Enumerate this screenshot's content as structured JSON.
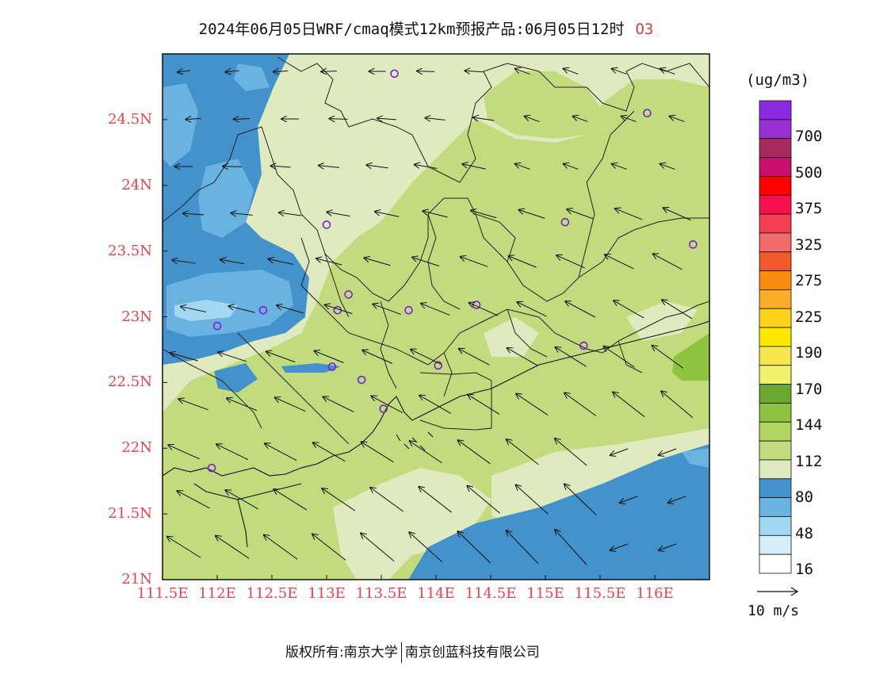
{
  "title": {
    "main": "2024年06月05日WRF/cmaq模式12km预报产品:06月05日12时",
    "variable": "O3"
  },
  "map": {
    "lat_range": [
      21.0,
      25.0
    ],
    "lon_range": [
      111.5,
      116.5
    ],
    "lat_ticks": [
      {
        "value": 21.0,
        "label": "21N"
      },
      {
        "value": 21.5,
        "label": "21.5N"
      },
      {
        "value": 22.0,
        "label": "22N"
      },
      {
        "value": 22.5,
        "label": "22.5N"
      },
      {
        "value": 23.0,
        "label": "23N"
      },
      {
        "value": 23.5,
        "label": "23.5N"
      },
      {
        "value": 24.0,
        "label": "24N"
      },
      {
        "value": 24.5,
        "label": "24.5N"
      }
    ],
    "lon_ticks": [
      {
        "value": 111.5,
        "label": "111.5E"
      },
      {
        "value": 112.0,
        "label": "112E"
      },
      {
        "value": 112.5,
        "label": "112.5E"
      },
      {
        "value": 113.0,
        "label": "113E"
      },
      {
        "value": 113.5,
        "label": "113.5E"
      },
      {
        "value": 114.0,
        "label": "114E"
      },
      {
        "value": 114.5,
        "label": "114.5E"
      },
      {
        "value": 115.0,
        "label": "115E"
      },
      {
        "value": 115.5,
        "label": "115.5E"
      },
      {
        "value": 116.0,
        "label": "116E"
      }
    ],
    "stations": [
      {
        "lon": 113.62,
        "lat": 24.85
      },
      {
        "lon": 115.93,
        "lat": 24.55
      },
      {
        "lon": 115.18,
        "lat": 23.72
      },
      {
        "lon": 116.35,
        "lat": 23.55
      },
      {
        "lon": 113.0,
        "lat": 23.7
      },
      {
        "lon": 112.42,
        "lat": 23.05
      },
      {
        "lon": 112.0,
        "lat": 22.93
      },
      {
        "lon": 113.2,
        "lat": 23.17
      },
      {
        "lon": 113.1,
        "lat": 23.05
      },
      {
        "lon": 113.75,
        "lat": 23.05
      },
      {
        "lon": 114.37,
        "lat": 23.09
      },
      {
        "lon": 113.05,
        "lat": 22.62
      },
      {
        "lon": 113.32,
        "lat": 22.52
      },
      {
        "lon": 114.02,
        "lat": 22.63
      },
      {
        "lon": 115.35,
        "lat": 22.78
      },
      {
        "lon": 113.52,
        "lat": 22.3
      },
      {
        "lon": 111.95,
        "lat": 21.85
      }
    ]
  },
  "colorbar": {
    "unit": "(ug/m3)",
    "colors": [
      "#ffffff",
      "#d6eefa",
      "#a3d8f3",
      "#6ab2e0",
      "#4392cb",
      "#dfeabf",
      "#c2db7d",
      "#b3d562",
      "#8dc33e",
      "#6aa732",
      "#f0f26d",
      "#f8e64f",
      "#fde804",
      "#fcd21b",
      "#fbad29",
      "#f98b0f",
      "#ef5a26",
      "#f36a6b",
      "#f43f52",
      "#f90f4f",
      "#ff0000",
      "#c70f6c",
      "#a72a5e",
      "#9b30d2",
      "#8a2ae0"
    ],
    "labels": [
      {
        "text": "700",
        "index": 2
      },
      {
        "text": "500",
        "index": 4
      },
      {
        "text": "375",
        "index": 6
      },
      {
        "text": "325",
        "index": 8
      },
      {
        "text": "275",
        "index": 10
      },
      {
        "text": "225",
        "index": 12
      },
      {
        "text": "190",
        "index": 14
      },
      {
        "text": "170",
        "index": 16
      },
      {
        "text": "144",
        "index": 18
      },
      {
        "text": "112",
        "index": 20
      },
      {
        "text": "80",
        "index": 22
      },
      {
        "text": "48",
        "index": 24
      },
      {
        "text": "16",
        "index": 26
      }
    ]
  },
  "reference_vector": {
    "label": "10 m/s"
  },
  "footer": {
    "left": "版权所有:南京大学",
    "right": "南京创蓝科技有限公司"
  }
}
